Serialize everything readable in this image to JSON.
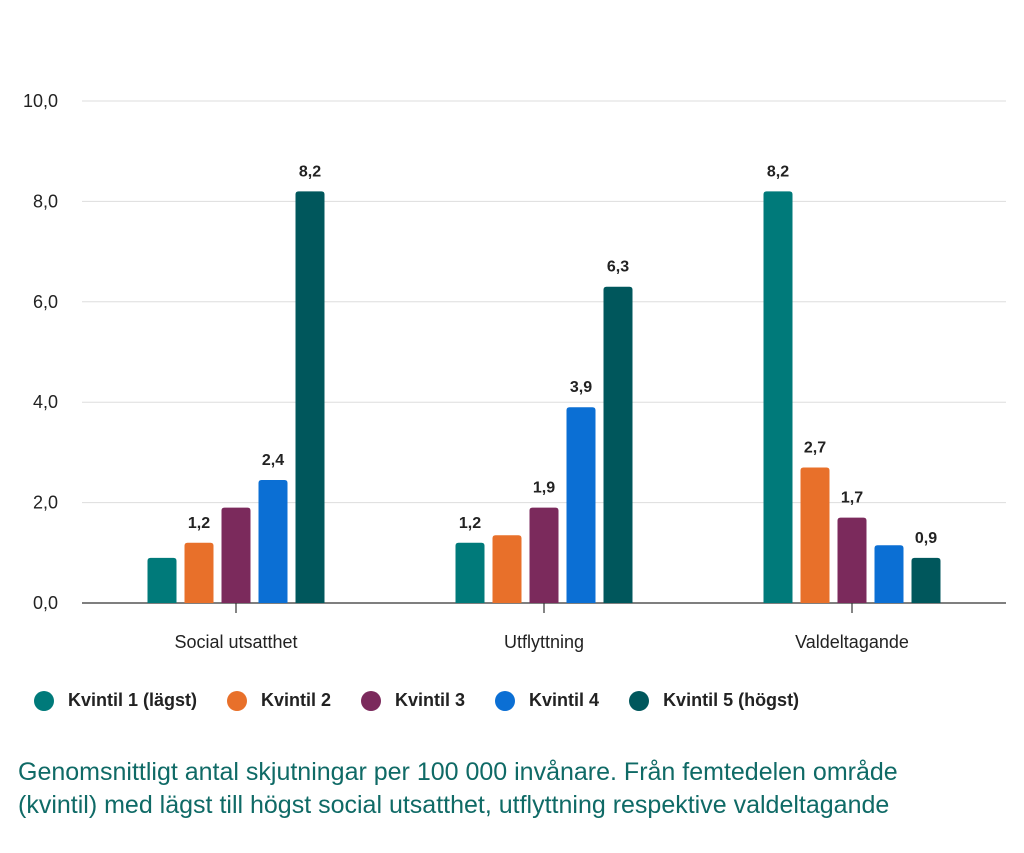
{
  "chart_data": {
    "type": "bar",
    "categories": [
      "Social utsatthet",
      "Utflyttning",
      "Valdeltagande"
    ],
    "series": [
      {
        "name": "Kvintil 1 (lägst)",
        "color": "#007a7a",
        "values": [
          0.9,
          1.2,
          8.2
        ],
        "labels": [
          null,
          "1,2",
          "8,2"
        ]
      },
      {
        "name": "Kvintil 2",
        "color": "#e8702a",
        "values": [
          1.2,
          1.35,
          2.7
        ],
        "labels": [
          "1,2",
          null,
          "2,7"
        ]
      },
      {
        "name": "Kvintil 3",
        "color": "#7b2a5c",
        "values": [
          1.9,
          1.9,
          1.7
        ],
        "labels": [
          null,
          "1,9",
          "1,7"
        ]
      },
      {
        "name": "Kvintil 4",
        "color": "#0b6fd4",
        "values": [
          2.45,
          3.9,
          1.15
        ],
        "labels": [
          "2,4",
          "3,9",
          null
        ]
      },
      {
        "name": "Kvintil 5 (högst)",
        "color": "#00575c",
        "values": [
          8.2,
          6.3,
          0.9
        ],
        "labels": [
          "8,2",
          "6,3",
          "0,9"
        ]
      }
    ],
    "ylim": [
      0,
      10
    ],
    "yticks": [
      "0,0",
      "2,0",
      "4,0",
      "6,0",
      "8,0",
      "10,0"
    ],
    "grid": true,
    "legend_position": "bottom"
  },
  "caption": {
    "line1": "Genomsnittligt antal skjutningar per 100 000 invånare. Från femtedelen område",
    "line2": "(kvintil) med lägst till högst social utsatthet, utflyttning respektive valdeltagande"
  }
}
